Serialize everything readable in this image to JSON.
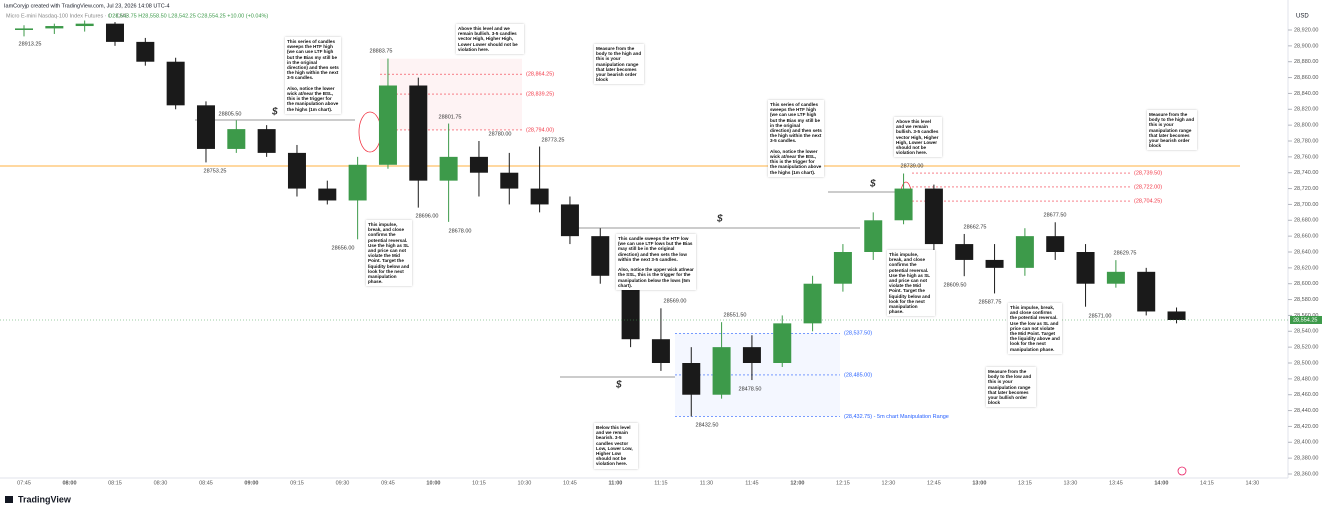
{
  "header": {
    "credit": "IamCoryjp created with TradingView.com, Jul 23, 2026 14:08 UTC-4",
    "symbol": "Micro E-mini Nasdaq-100 Index Futures · 1 · CME",
    "ohlc": "O28,543.75 H28,558.50 L28,542.25 C28,554.25 +10.00 (+0.04%)"
  },
  "chart_data": {
    "type": "candlestick",
    "x": [
      "07:45",
      "07:55",
      "08:05",
      "08:15",
      "08:25",
      "08:35",
      "08:45",
      "08:55",
      "09:05",
      "09:15",
      "09:25",
      "09:35",
      "09:45",
      "09:55",
      "10:05",
      "10:15",
      "10:25",
      "10:35",
      "10:45",
      "10:55",
      "11:05",
      "11:15",
      "11:25",
      "11:35",
      "11:45",
      "11:55",
      "12:05",
      "12:15",
      "12:25",
      "12:35",
      "12:45",
      "12:55",
      "13:05",
      "13:15",
      "13:25",
      "13:35",
      "13:45",
      "13:55",
      "14:05"
    ],
    "open": [
      28920,
      28922,
      28925,
      28928,
      28905,
      28880,
      28825,
      28770,
      28795,
      28765,
      28720,
      28705,
      28750,
      28850,
      28730,
      28760,
      28740,
      28720,
      28700,
      28660,
      28610,
      28530,
      28500,
      28460,
      28520,
      28500,
      28550,
      28600,
      28640,
      28680,
      28720,
      28650,
      28630,
      28620,
      28660,
      28640,
      28600,
      28615,
      28565
    ],
    "high": [
      28926,
      28928,
      28932,
      28930,
      28910,
      28885,
      28830,
      28806,
      28800,
      28775,
      28730,
      28760,
      28884,
      28860,
      28802,
      28780,
      28765,
      28773,
      28710,
      28670,
      28620,
      28569,
      28520,
      28551.5,
      28535,
      28560,
      28610,
      28650,
      28690,
      28739,
      28725,
      28662.75,
      28650,
      28670,
      28677.5,
      28650,
      28629.75,
      28620,
      28570
    ],
    "low": [
      28912,
      28915,
      28918,
      28900,
      28875,
      28820,
      28753,
      28765,
      28760,
      28710,
      28700,
      28656,
      28745,
      28696,
      28678,
      28710,
      28700,
      28690,
      28650,
      28600,
      28520,
      28490,
      28432.5,
      28455,
      28478.5,
      28495,
      28540,
      28590,
      28630,
      28675,
      28640,
      28609.5,
      28587.75,
      28610,
      28630,
      28571,
      28595,
      28560,
      28550
    ],
    "close": [
      28922,
      28925,
      28928,
      28905,
      28880,
      28825,
      28770,
      28795,
      28765,
      28720,
      28705,
      28750,
      28850,
      28730,
      28760,
      28740,
      28720,
      28700,
      28660,
      28610,
      28530,
      28500,
      28460,
      28520,
      28500,
      28550,
      28600,
      28640,
      28680,
      28720,
      28650,
      28630,
      28620,
      28660,
      28640,
      28600,
      28615,
      28565,
      28554.25
    ],
    "colors": {
      "up": "#3d9a4a",
      "down": "#1a1a1a"
    },
    "ylim": [
      28350,
      28935
    ],
    "axis_unit": "USD",
    "yticks": [
      {
        "value": 28360,
        "label": "28,360.00"
      },
      {
        "value": 28380,
        "label": "28,380.00"
      },
      {
        "value": 28400,
        "label": "28,400.00"
      },
      {
        "value": 28420,
        "label": "28,420.00"
      },
      {
        "value": 28440,
        "label": "28,440.00"
      },
      {
        "value": 28460,
        "label": "28,460.00"
      },
      {
        "value": 28480,
        "label": "28,480.00"
      },
      {
        "value": 28500,
        "label": "28,500.00"
      },
      {
        "value": 28520,
        "label": "28,520.00"
      },
      {
        "value": 28540,
        "label": "28,540.00"
      },
      {
        "value": 28560,
        "label": "28,560.00"
      },
      {
        "value": 28580,
        "label": "28,580.00"
      },
      {
        "value": 28600,
        "label": "28,600.00"
      },
      {
        "value": 28620,
        "label": "28,620.00"
      },
      {
        "value": 28640,
        "label": "28,640.00"
      },
      {
        "value": 28660,
        "label": "28,660.00"
      },
      {
        "value": 28680,
        "label": "28,680.00"
      },
      {
        "value": 28700,
        "label": "28,700.00"
      },
      {
        "value": 28720,
        "label": "28,720.00"
      },
      {
        "value": 28740,
        "label": "28,740.00"
      },
      {
        "value": 28760,
        "label": "28,760.00"
      },
      {
        "value": 28780,
        "label": "28,780.00"
      },
      {
        "value": 28800,
        "label": "28,800.00"
      },
      {
        "value": 28820,
        "label": "28,820.00"
      },
      {
        "value": 28840,
        "label": "28,840.00"
      },
      {
        "value": 28860,
        "label": "28,860.00"
      },
      {
        "value": 28880,
        "label": "28,880.00"
      },
      {
        "value": 28900,
        "label": "28,900.00"
      },
      {
        "value": 28920,
        "label": "28,920.00"
      }
    ],
    "xticks": [
      "07:45",
      "08:00",
      "08:15",
      "08:30",
      "08:45",
      "09:00",
      "09:15",
      "09:30",
      "09:45",
      "10:00",
      "10:15",
      "10:30",
      "10:45",
      "11:00",
      "11:15",
      "11:30",
      "11:45",
      "12:00",
      "12:15",
      "12:30",
      "12:45",
      "13:00",
      "13:15",
      "13:30",
      "13:45",
      "14:00",
      "14:15",
      "14:30"
    ],
    "current_price": {
      "value": 28554.25,
      "label": "28,554.25",
      "color": "#3d9a4a"
    },
    "alert_line": 28748.5,
    "levels": [
      {
        "value": 28864.25,
        "label": "(28,864.25)",
        "color": "#f23645"
      },
      {
        "value": 28839.25,
        "label": "(28,839.25)",
        "color": "#f23645"
      },
      {
        "value": 28794,
        "label": "(28,794.00)",
        "color": "#f23645"
      },
      {
        "value": 28739.5,
        "label": "(28,739.50)",
        "color": "#f23645"
      },
      {
        "value": 28722,
        "label": "(28,722.00)",
        "color": "#f23645"
      },
      {
        "value": 28704.25,
        "label": "(28,704.25)",
        "color": "#f23645"
      },
      {
        "value": 28537.5,
        "label": "(28,537.50)",
        "color": "#2962ff"
      },
      {
        "value": 28485,
        "label": "(28,485.00)",
        "color": "#2962ff"
      },
      {
        "value": 28432.75,
        "label": "(28,432.75) - 5m chart Manipulation Range",
        "color": "#2962ff"
      }
    ],
    "price_labels": [
      "28913.25",
      "28805.50",
      "28753.25",
      "28656.00",
      "28883.75",
      "28801.75",
      "28696.00",
      "28678.00",
      "28780.00",
      "28773.25",
      "28569.00",
      "28551.50",
      "28478.50",
      "28432.50",
      "28739.00",
      "28662.75",
      "28609.50",
      "28587.75",
      "28677.50",
      "28629.75",
      "28571.00"
    ],
    "liquidity_symbol": "$",
    "annotations": [
      "This series of candles sweeps the HTF high (we can use LTF high but the Bias my still be in the original direction) and then sets the high within the next 3-5 candles.\n\nAlso, notice the lower wick at/near the BSL, this is the trigger for the manipulation above the highs (1m chart).",
      "Above this level and we remain bullish. 3-5 candles vector High, Higher High, Lower Lower should not be violation here.",
      "Measure from the body to the high and this is your manipulation range that later becomes your bearish order block",
      "This impulse, break, and close confirms the potential reversal. Use the high as SL and price can not violate the Mid Point. Target the liquidity below and look for the next manipulation phase.",
      "This candle sweeps the HTF low (we can use LTF lows but the Bias may still be in the original direction) and then sets the low within the next 3-5 candles.\n\nAlso, notice the upper wick at/near the SSL, this is the trigger for the manipulation below the lows (5m chart).",
      "Below this level and we remain bearish. 3-5 candles vector Low, Lower Low, Higher Low should not be violation here.",
      "This series of candles sweeps the HTF high (we can use LTF high but the Bias my still be in the original direction) and then sets the high within the next 3-5 candles.\n\nAlso, notice the lower wick at/near the BSL, this is the trigger for the manipulation above the highs (1m chart).",
      "Above this level and we remain bullish. 3-5 candles vector High, Higher High, Lower Lower should not be violation here.",
      "Measure from the body to the high and this is your manipulation range that later becomes your bearish order block",
      "This impulse, break, and close confirms the potential reversal. Use the high as SL and price can not violate the Mid Point. Target the liquidity below and look for the next manipulation phase.",
      "This impulse, break, and close confirms the potential reversal. Use the low as SL and price can not violate the Mid Point. Target the liquidity above and look for the next manipulation phase.",
      "Measure from the body to the low and this is your manipulation range that later becomes your bullish order block"
    ]
  },
  "footer": {
    "brand": "TradingView"
  }
}
